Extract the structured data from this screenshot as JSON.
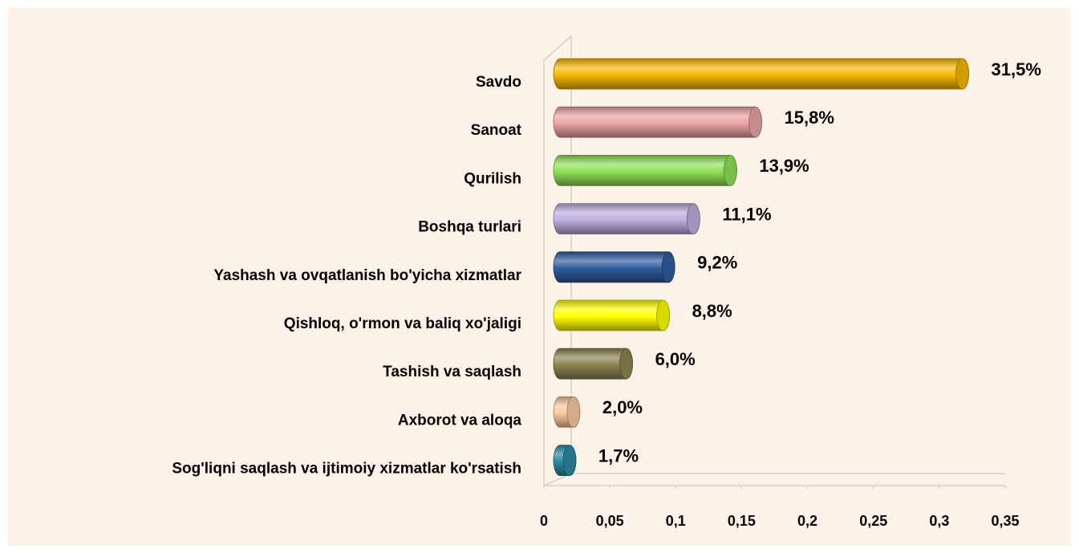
{
  "chart_data": {
    "type": "bar",
    "orientation": "horizontal",
    "categories": [
      "Savdo",
      "Sanoat",
      "Qurilish",
      "Boshqa turlari",
      "Yashash va ovqatlanish  bo'yicha xizmatlar",
      "Qishloq, o'rmon va baliq xo'jaligi",
      "Tashish va saqlash",
      "Axborot va aloqa",
      "Sog'liqni saqlash  va ijtimoiy xizmatlar ko'rsatish"
    ],
    "values": [
      0.315,
      0.158,
      0.139,
      0.111,
      0.092,
      0.088,
      0.06,
      0.02,
      0.017
    ],
    "value_labels": [
      "31,5%",
      "15,8%",
      "13,9%",
      "11,1%",
      "9,2%",
      "8,8%",
      "6,0%",
      "2,0%",
      "1,7%"
    ],
    "colors": [
      "#f5b800",
      "#eba3a3",
      "#8ee055",
      "#bcaee0",
      "#2f5c9e",
      "#ffff00",
      "#8c8252",
      "#f9c9a0",
      "#2a8aa3"
    ],
    "xlim": [
      0,
      0.35
    ],
    "xticks": [
      0,
      {
        "value": 0.05,
        "label": "0,05"
      },
      {
        "value": 0.1,
        "label": "0,1"
      },
      {
        "value": 0.15,
        "label": "0,15"
      },
      {
        "value": 0.2,
        "label": "0,2"
      },
      {
        "value": 0.25,
        "label": "0,25"
      },
      {
        "value": 0.3,
        "label": "0,3"
      },
      {
        "value": 0.35,
        "label": "0,35"
      }
    ]
  }
}
